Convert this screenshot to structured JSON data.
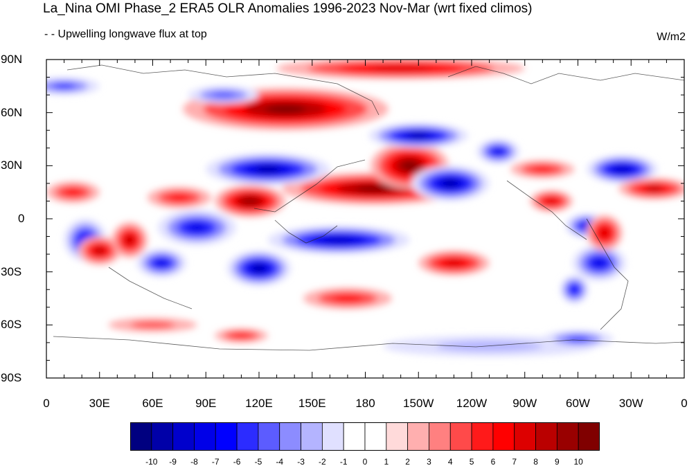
{
  "title": "La_Nina OMI Phase_2 ERA5 OLR Anomalies 1996-2023 Nov-Mar (wrt fixed climos)",
  "subtitle": "- - Upwelling longwave flux at top",
  "units": "W/m2",
  "map": {
    "projection": "cylindrical-equidistant",
    "lon_range": [
      0,
      360
    ],
    "lat_range": [
      -90,
      90
    ],
    "lat_ticks": [
      {
        "value": 90,
        "label": "90N"
      },
      {
        "value": 60,
        "label": "60N"
      },
      {
        "value": 30,
        "label": "30N"
      },
      {
        "value": 0,
        "label": "0"
      },
      {
        "value": -30,
        "label": "30S"
      },
      {
        "value": -60,
        "label": "60S"
      },
      {
        "value": -90,
        "label": "90S"
      }
    ],
    "lon_ticks": [
      {
        "value": 0,
        "label": "0"
      },
      {
        "value": 30,
        "label": "30E"
      },
      {
        "value": 60,
        "label": "60E"
      },
      {
        "value": 90,
        "label": "90E"
      },
      {
        "value": 120,
        "label": "120E"
      },
      {
        "value": 150,
        "label": "150E"
      },
      {
        "value": 180,
        "label": "180"
      },
      {
        "value": 210,
        "label": "150W"
      },
      {
        "value": 240,
        "label": "120W"
      },
      {
        "value": 270,
        "label": "90W"
      },
      {
        "value": 300,
        "label": "60W"
      },
      {
        "value": 330,
        "label": "30W"
      },
      {
        "value": 360,
        "label": "0"
      }
    ],
    "anomaly_blobs": [
      {
        "lon": 135,
        "lat": 62,
        "rx": 58,
        "ry": 12,
        "value": 10
      },
      {
        "lon": 200,
        "lat": 85,
        "rx": 70,
        "ry": 6,
        "value": 7
      },
      {
        "lon": 185,
        "lat": 17,
        "rx": 52,
        "ry": 9,
        "value": 10
      },
      {
        "lon": 205,
        "lat": 30,
        "rx": 22,
        "ry": 13,
        "value": 10
      },
      {
        "lon": 115,
        "lat": 10,
        "rx": 20,
        "ry": 9,
        "value": 9
      },
      {
        "lon": 125,
        "lat": 28,
        "rx": 35,
        "ry": 9,
        "value": -10
      },
      {
        "lon": 210,
        "lat": 47,
        "rx": 28,
        "ry": 7,
        "value": -10
      },
      {
        "lon": 228,
        "lat": 20,
        "rx": 22,
        "ry": 10,
        "value": -10
      },
      {
        "lon": 255,
        "lat": 38,
        "rx": 12,
        "ry": 7,
        "value": -8
      },
      {
        "lon": 165,
        "lat": -12,
        "rx": 40,
        "ry": 8,
        "value": -9
      },
      {
        "lon": 120,
        "lat": -28,
        "rx": 18,
        "ry": 10,
        "value": -10
      },
      {
        "lon": 85,
        "lat": -5,
        "rx": 22,
        "ry": 10,
        "value": -8
      },
      {
        "lon": 65,
        "lat": -25,
        "rx": 14,
        "ry": 8,
        "value": -8
      },
      {
        "lon": 22,
        "lat": -12,
        "rx": 12,
        "ry": 12,
        "value": -7
      },
      {
        "lon": 305,
        "lat": -4,
        "rx": 12,
        "ry": 7,
        "value": -8
      },
      {
        "lon": 312,
        "lat": -25,
        "rx": 15,
        "ry": 10,
        "value": -8
      },
      {
        "lon": 298,
        "lat": -40,
        "rx": 8,
        "ry": 8,
        "value": -7
      },
      {
        "lon": 325,
        "lat": 28,
        "rx": 20,
        "ry": 8,
        "value": -9
      },
      {
        "lon": 30,
        "lat": -18,
        "rx": 12,
        "ry": 8,
        "value": 8
      },
      {
        "lon": 47,
        "lat": -12,
        "rx": 10,
        "ry": 10,
        "value": 8
      },
      {
        "lon": 15,
        "lat": 15,
        "rx": 15,
        "ry": 6,
        "value": 6
      },
      {
        "lon": 75,
        "lat": 12,
        "rx": 18,
        "ry": 6,
        "value": 6
      },
      {
        "lon": 230,
        "lat": -25,
        "rx": 20,
        "ry": 7,
        "value": 7
      },
      {
        "lon": 170,
        "lat": -45,
        "rx": 25,
        "ry": 6,
        "value": 6
      },
      {
        "lon": 315,
        "lat": -8,
        "rx": 10,
        "ry": 10,
        "value": 7
      },
      {
        "lon": 343,
        "lat": 17,
        "rx": 20,
        "ry": 6,
        "value": 8
      },
      {
        "lon": 285,
        "lat": 10,
        "rx": 12,
        "ry": 6,
        "value": 7
      },
      {
        "lon": 280,
        "lat": 28,
        "rx": 18,
        "ry": 5,
        "value": 6
      },
      {
        "lon": 10,
        "lat": 75,
        "rx": 20,
        "ry": 5,
        "value": -6
      },
      {
        "lon": 100,
        "lat": 70,
        "rx": 20,
        "ry": 5,
        "value": -5
      },
      {
        "lon": 250,
        "lat": -72,
        "rx": 60,
        "ry": 6,
        "value": -3
      },
      {
        "lon": 300,
        "lat": -68,
        "rx": 20,
        "ry": 5,
        "value": -6
      },
      {
        "lon": 60,
        "lat": -60,
        "rx": 25,
        "ry": 4,
        "value": 4
      },
      {
        "lon": 110,
        "lat": -66,
        "rx": 15,
        "ry": 4,
        "value": 6
      }
    ]
  },
  "colorbar": {
    "levels": [
      "-10",
      "-9",
      "-8",
      "-7",
      "-6",
      "-5",
      "-4",
      "-3",
      "-2",
      "-1",
      "0",
      "1",
      "2",
      "3",
      "4",
      "5",
      "6",
      "7",
      "8",
      "9",
      "10"
    ],
    "colors": [
      "#000080",
      "#0000A8",
      "#0000CC",
      "#0000E8",
      "#0000FF",
      "#2C2CFF",
      "#5C5CFF",
      "#8C8CFF",
      "#B4B4FF",
      "#E0E0FF",
      "#FFFFFF",
      "#FFFFFF",
      "#FFDADA",
      "#FFAFAF",
      "#FF8080",
      "#FF4A4A",
      "#FF1A1A",
      "#FF0000",
      "#DD0000",
      "#BA0000",
      "#990000",
      "#800000"
    ]
  }
}
